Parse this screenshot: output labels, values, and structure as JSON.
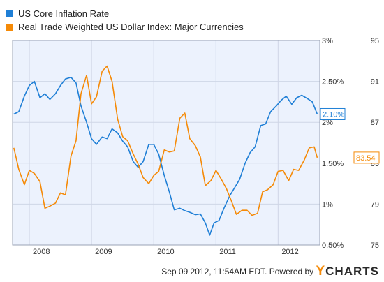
{
  "colors": {
    "series_blue": "#1f7fd6",
    "series_orange": "#f58a07",
    "plot_bg": "#ecf2fd",
    "grid": "#cfd6e6",
    "axis_text": "#333333"
  },
  "chart_data": {
    "type": "line",
    "title": "",
    "xlabel": "",
    "x_range": [
      2007.73,
      2012.67
    ],
    "x_ticks": [
      {
        "value": 2008.0,
        "label": "2008"
      },
      {
        "value": 2009.0,
        "label": "2009"
      },
      {
        "value": 2010.0,
        "label": "2010"
      },
      {
        "value": 2011.0,
        "label": "2011"
      },
      {
        "value": 2012.0,
        "label": "2012"
      }
    ],
    "y_axis_left": {
      "series": "US Core Inflation Rate",
      "range": [
        0.5,
        3.0
      ],
      "ticks": [
        {
          "value": 3.0,
          "label": "3%"
        },
        {
          "value": 2.5,
          "label": "2.50%"
        },
        {
          "value": 2.0,
          "label": "2%"
        },
        {
          "value": 1.5,
          "label": "1.50%"
        },
        {
          "value": 1.0,
          "label": "1%"
        },
        {
          "value": 0.5,
          "label": "0.50%"
        }
      ]
    },
    "y_axis_right": {
      "series": "Real Trade Weighted US Dollar Index: Major Currencies",
      "range": [
        75,
        95
      ],
      "ticks": [
        {
          "value": 95,
          "label": "95"
        },
        {
          "value": 91,
          "label": "91"
        },
        {
          "value": 87,
          "label": "87"
        },
        {
          "value": 83,
          "label": "83"
        },
        {
          "value": 79,
          "label": "79"
        },
        {
          "value": 75,
          "label": "75"
        }
      ]
    },
    "grid": true,
    "legend_position": "top-left",
    "series": [
      {
        "name": "US Core Inflation Rate",
        "axis": "left",
        "color": "#1f7fd6",
        "last_value_label": "2.10%",
        "points": [
          [
            2007.75,
            2.1
          ],
          [
            2007.83,
            2.13
          ],
          [
            2007.92,
            2.32
          ],
          [
            2008.0,
            2.45
          ],
          [
            2008.08,
            2.5
          ],
          [
            2008.17,
            2.3
          ],
          [
            2008.25,
            2.35
          ],
          [
            2008.33,
            2.28
          ],
          [
            2008.42,
            2.35
          ],
          [
            2008.5,
            2.45
          ],
          [
            2008.58,
            2.53
          ],
          [
            2008.67,
            2.55
          ],
          [
            2008.75,
            2.48
          ],
          [
            2008.83,
            2.2
          ],
          [
            2008.92,
            2.0
          ],
          [
            2009.0,
            1.8
          ],
          [
            2009.08,
            1.73
          ],
          [
            2009.17,
            1.82
          ],
          [
            2009.25,
            1.8
          ],
          [
            2009.33,
            1.92
          ],
          [
            2009.42,
            1.87
          ],
          [
            2009.5,
            1.77
          ],
          [
            2009.58,
            1.7
          ],
          [
            2009.67,
            1.52
          ],
          [
            2009.75,
            1.45
          ],
          [
            2009.83,
            1.52
          ],
          [
            2009.92,
            1.73
          ],
          [
            2010.0,
            1.73
          ],
          [
            2010.08,
            1.61
          ],
          [
            2010.17,
            1.35
          ],
          [
            2010.25,
            1.15
          ],
          [
            2010.33,
            0.93
          ],
          [
            2010.42,
            0.95
          ],
          [
            2010.5,
            0.92
          ],
          [
            2010.58,
            0.9
          ],
          [
            2010.67,
            0.87
          ],
          [
            2010.75,
            0.88
          ],
          [
            2010.83,
            0.77
          ],
          [
            2010.9,
            0.62
          ],
          [
            2010.97,
            0.77
          ],
          [
            2011.05,
            0.8
          ],
          [
            2011.13,
            0.95
          ],
          [
            2011.22,
            1.1
          ],
          [
            2011.3,
            1.2
          ],
          [
            2011.38,
            1.3
          ],
          [
            2011.47,
            1.5
          ],
          [
            2011.55,
            1.63
          ],
          [
            2011.63,
            1.7
          ],
          [
            2011.72,
            1.96
          ],
          [
            2011.8,
            1.98
          ],
          [
            2011.88,
            2.13
          ],
          [
            2011.97,
            2.2
          ],
          [
            2012.05,
            2.27
          ],
          [
            2012.13,
            2.32
          ],
          [
            2012.22,
            2.22
          ],
          [
            2012.3,
            2.3
          ],
          [
            2012.38,
            2.33
          ],
          [
            2012.47,
            2.29
          ],
          [
            2012.55,
            2.25
          ],
          [
            2012.63,
            2.1
          ]
        ]
      },
      {
        "name": "Real Trade Weighted US Dollar Index: Major Currencies",
        "axis": "right",
        "color": "#f58a07",
        "last_value_label": "83.54",
        "points": [
          [
            2007.75,
            84.5
          ],
          [
            2007.83,
            82.4
          ],
          [
            2007.92,
            80.9
          ],
          [
            2008.0,
            82.3
          ],
          [
            2008.08,
            82.0
          ],
          [
            2008.17,
            81.2
          ],
          [
            2008.25,
            78.6
          ],
          [
            2008.33,
            78.8
          ],
          [
            2008.42,
            79.1
          ],
          [
            2008.5,
            80.1
          ],
          [
            2008.58,
            79.9
          ],
          [
            2008.67,
            83.7
          ],
          [
            2008.75,
            85.2
          ],
          [
            2008.83,
            89.8
          ],
          [
            2008.92,
            91.6
          ],
          [
            2009.0,
            88.8
          ],
          [
            2009.08,
            89.5
          ],
          [
            2009.17,
            92.0
          ],
          [
            2009.25,
            92.5
          ],
          [
            2009.33,
            91.0
          ],
          [
            2009.42,
            87.3
          ],
          [
            2009.5,
            85.6
          ],
          [
            2009.58,
            85.2
          ],
          [
            2009.67,
            83.9
          ],
          [
            2009.75,
            82.9
          ],
          [
            2009.83,
            81.6
          ],
          [
            2009.92,
            81.0
          ],
          [
            2010.0,
            81.8
          ],
          [
            2010.08,
            82.2
          ],
          [
            2010.17,
            84.3
          ],
          [
            2010.25,
            84.1
          ],
          [
            2010.33,
            84.2
          ],
          [
            2010.42,
            87.4
          ],
          [
            2010.5,
            87.9
          ],
          [
            2010.58,
            85.4
          ],
          [
            2010.67,
            84.7
          ],
          [
            2010.75,
            83.6
          ],
          [
            2010.83,
            80.8
          ],
          [
            2010.92,
            81.3
          ],
          [
            2011.0,
            82.3
          ],
          [
            2011.08,
            81.5
          ],
          [
            2011.17,
            80.5
          ],
          [
            2011.25,
            79.3
          ],
          [
            2011.33,
            78.0
          ],
          [
            2011.42,
            78.4
          ],
          [
            2011.5,
            78.4
          ],
          [
            2011.58,
            77.9
          ],
          [
            2011.67,
            78.1
          ],
          [
            2011.75,
            80.2
          ],
          [
            2011.83,
            80.4
          ],
          [
            2011.92,
            80.9
          ],
          [
            2012.0,
            82.2
          ],
          [
            2012.08,
            82.3
          ],
          [
            2012.17,
            81.3
          ],
          [
            2012.25,
            82.4
          ],
          [
            2012.33,
            82.3
          ],
          [
            2012.42,
            83.3
          ],
          [
            2012.5,
            84.5
          ],
          [
            2012.58,
            84.6
          ],
          [
            2012.63,
            83.54
          ]
        ]
      }
    ]
  },
  "footer": {
    "timestamp": "Sep 09 2012, 11:54AM EDT.",
    "powered_by": "Powered by",
    "brand_y": "Y",
    "brand_rest": "CHARTS"
  }
}
